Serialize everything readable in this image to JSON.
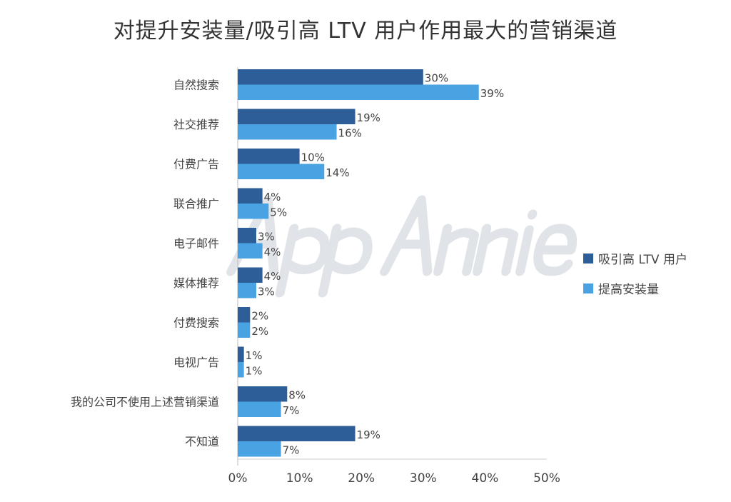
{
  "chart_data": {
    "type": "bar",
    "orientation": "horizontal",
    "title": "对提升安装量/吸引高 LTV 用户作用最大的营销渠道",
    "categories": [
      "自然搜索",
      "社交推荐",
      "付费广告",
      "联合推广",
      "电子邮件",
      "媒体推荐",
      "付费搜索",
      "电视广告",
      "我的公司不使用上述营销渠道",
      "不知道"
    ],
    "series": [
      {
        "name": "吸引高 LTV 用户",
        "color": "#2d5e98",
        "values": [
          30,
          19,
          10,
          4,
          3,
          4,
          2,
          1,
          8,
          19
        ],
        "labels": [
          "30%",
          "19%",
          "10%",
          "4%",
          "3%",
          "4%",
          "2%",
          "1%",
          "8%",
          "19%"
        ]
      },
      {
        "name": "提高安装量",
        "color": "#49a3e2",
        "values": [
          39,
          16,
          14,
          5,
          4,
          3,
          2,
          1,
          7,
          7
        ],
        "labels": [
          "39%",
          "16%",
          "14%",
          "5%",
          "4%",
          "3%",
          "2%",
          "1%",
          "7%",
          "7%"
        ]
      }
    ],
    "xlim": [
      0,
      50
    ],
    "xticks": [
      "0%",
      "10%",
      "20%",
      "30%",
      "40%",
      "50%"
    ],
    "xlabel": "",
    "ylabel": "",
    "legend": "right",
    "grid": false,
    "watermark": "App Annie"
  }
}
